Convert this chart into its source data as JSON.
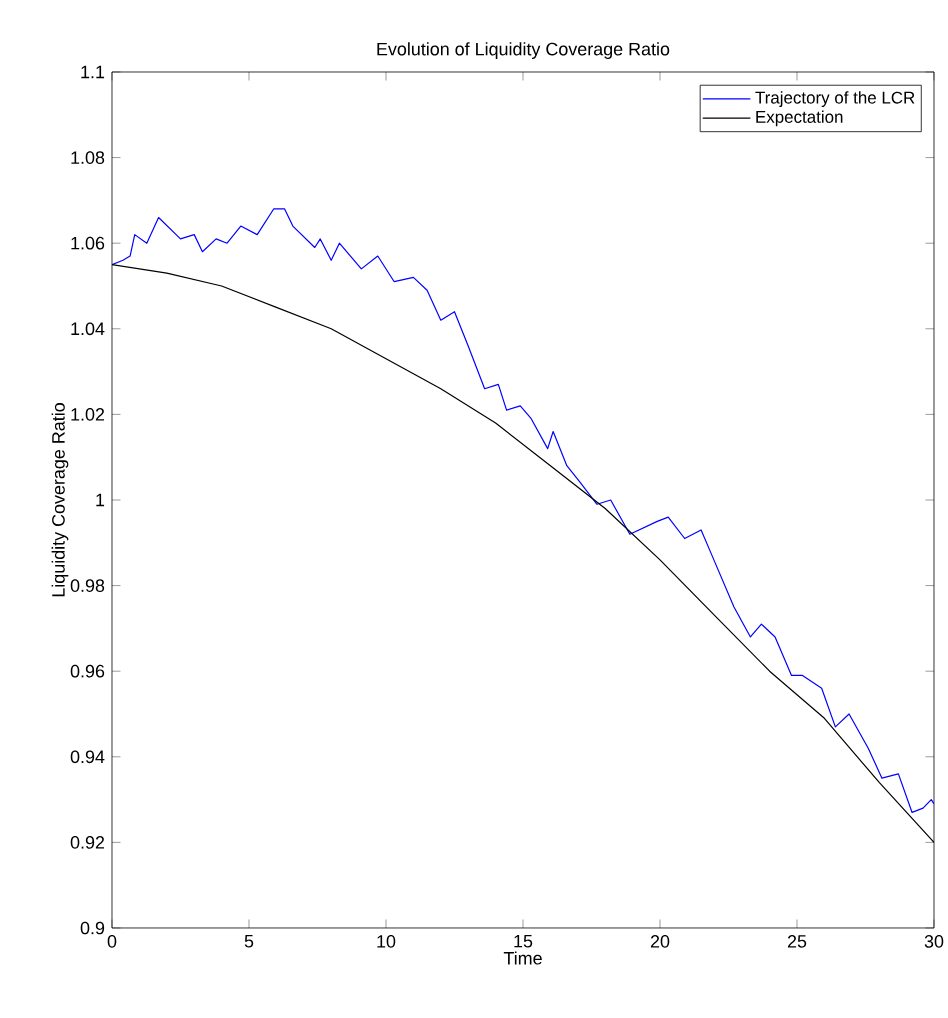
{
  "chart_data": {
    "type": "line",
    "title": "Evolution of Liquidity Coverage Ratio",
    "xlabel": "Time",
    "ylabel": "Liquidity Coverage Ratio",
    "xlim": [
      0,
      30
    ],
    "ylim": [
      0.9,
      1.1
    ],
    "xticks": [
      0,
      5,
      10,
      15,
      20,
      25,
      30
    ],
    "yticks": [
      0.9,
      0.92,
      0.94,
      0.96,
      0.98,
      1,
      1.02,
      1.04,
      1.06,
      1.08,
      1.1
    ],
    "grid": false,
    "legend": "top right",
    "marker": "none",
    "line_style": "solid",
    "series": [
      {
        "name": "Trajectory of the LCR",
        "color": "#0000ff",
        "x": [
          0,
          0.4,
          0.66,
          0.83,
          1.27,
          1.7,
          2.5,
          3.0,
          3.3,
          3.8,
          4.2,
          4.7,
          5.3,
          5.9,
          6.3,
          6.6,
          7.4,
          7.6,
          8.0,
          8.3,
          9.1,
          9.7,
          10.3,
          11.0,
          11.5,
          12.0,
          12.5,
          13.0,
          13.6,
          14.1,
          14.4,
          14.9,
          15.3,
          15.9,
          16.1,
          16.6,
          17.1,
          17.7,
          18.2,
          18.9,
          19.9,
          20.3,
          20.9,
          21.5,
          21.9,
          22.7,
          23.3,
          23.7,
          24.2,
          24.8,
          25.2,
          25.9,
          26.4,
          26.9,
          27.6,
          28.1,
          28.7,
          29.2,
          29.6,
          29.9,
          30
        ],
        "values": [
          1.055,
          1.056,
          1.057,
          1.062,
          1.06,
          1.066,
          1.061,
          1.062,
          1.058,
          1.061,
          1.06,
          1.064,
          1.062,
          1.068,
          1.068,
          1.064,
          1.059,
          1.061,
          1.056,
          1.06,
          1.054,
          1.057,
          1.051,
          1.052,
          1.049,
          1.042,
          1.044,
          1.036,
          1.026,
          1.027,
          1.021,
          1.022,
          1.019,
          1.012,
          1.016,
          1.008,
          1.004,
          0.999,
          1.0,
          0.992,
          0.995,
          0.996,
          0.991,
          0.993,
          0.987,
          0.975,
          0.968,
          0.971,
          0.968,
          0.959,
          0.959,
          0.956,
          0.947,
          0.95,
          0.942,
          0.935,
          0.936,
          0.927,
          0.928,
          0.93,
          0.929
        ]
      },
      {
        "name": "Expectation",
        "color": "#000000",
        "x": [
          0,
          2,
          4,
          6,
          8,
          10,
          12,
          14,
          16,
          18,
          20,
          22,
          24,
          26,
          28,
          30
        ],
        "values": [
          1.055,
          1.053,
          1.05,
          1.045,
          1.04,
          1.033,
          1.026,
          1.018,
          1.008,
          0.998,
          0.986,
          0.973,
          0.96,
          0.949,
          0.934,
          0.92
        ]
      }
    ]
  }
}
